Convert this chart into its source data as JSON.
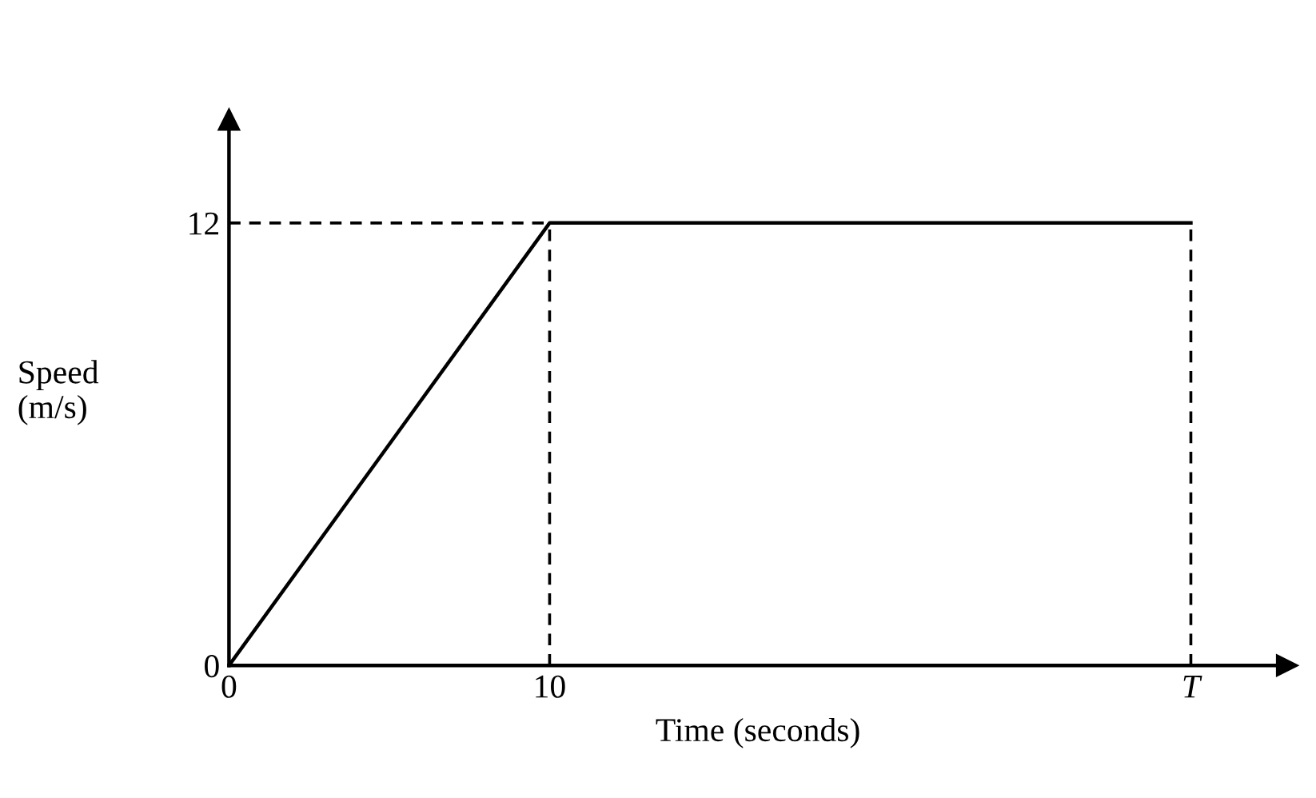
{
  "chart_data": {
    "type": "line",
    "xlabel": "Time (seconds)",
    "ylabel": "Speed\n(m/s)",
    "x": [
      0,
      10,
      30
    ],
    "series": [
      {
        "color": "#000000",
        "values": [
          0,
          12,
          12
        ]
      }
    ],
    "xlim": [
      0,
      33
    ],
    "ylim": [
      0,
      14.8
    ],
    "xticks": [
      0,
      10,
      {
        "value": 30,
        "label": "T"
      }
    ],
    "yticks": [
      0,
      12
    ],
    "ref_lines": [
      {
        "axis": "y",
        "value": 12,
        "line_style": "dashed",
        "color": "#000000"
      },
      {
        "axis": "x",
        "value": 10,
        "line_style": "dashed",
        "color": "#000000"
      },
      {
        "axis": "x",
        "value": 30,
        "line_style": "dashed",
        "color": "#000000"
      }
    ],
    "grid": false,
    "legend": false,
    "marker": "none",
    "line_style": "solid"
  }
}
